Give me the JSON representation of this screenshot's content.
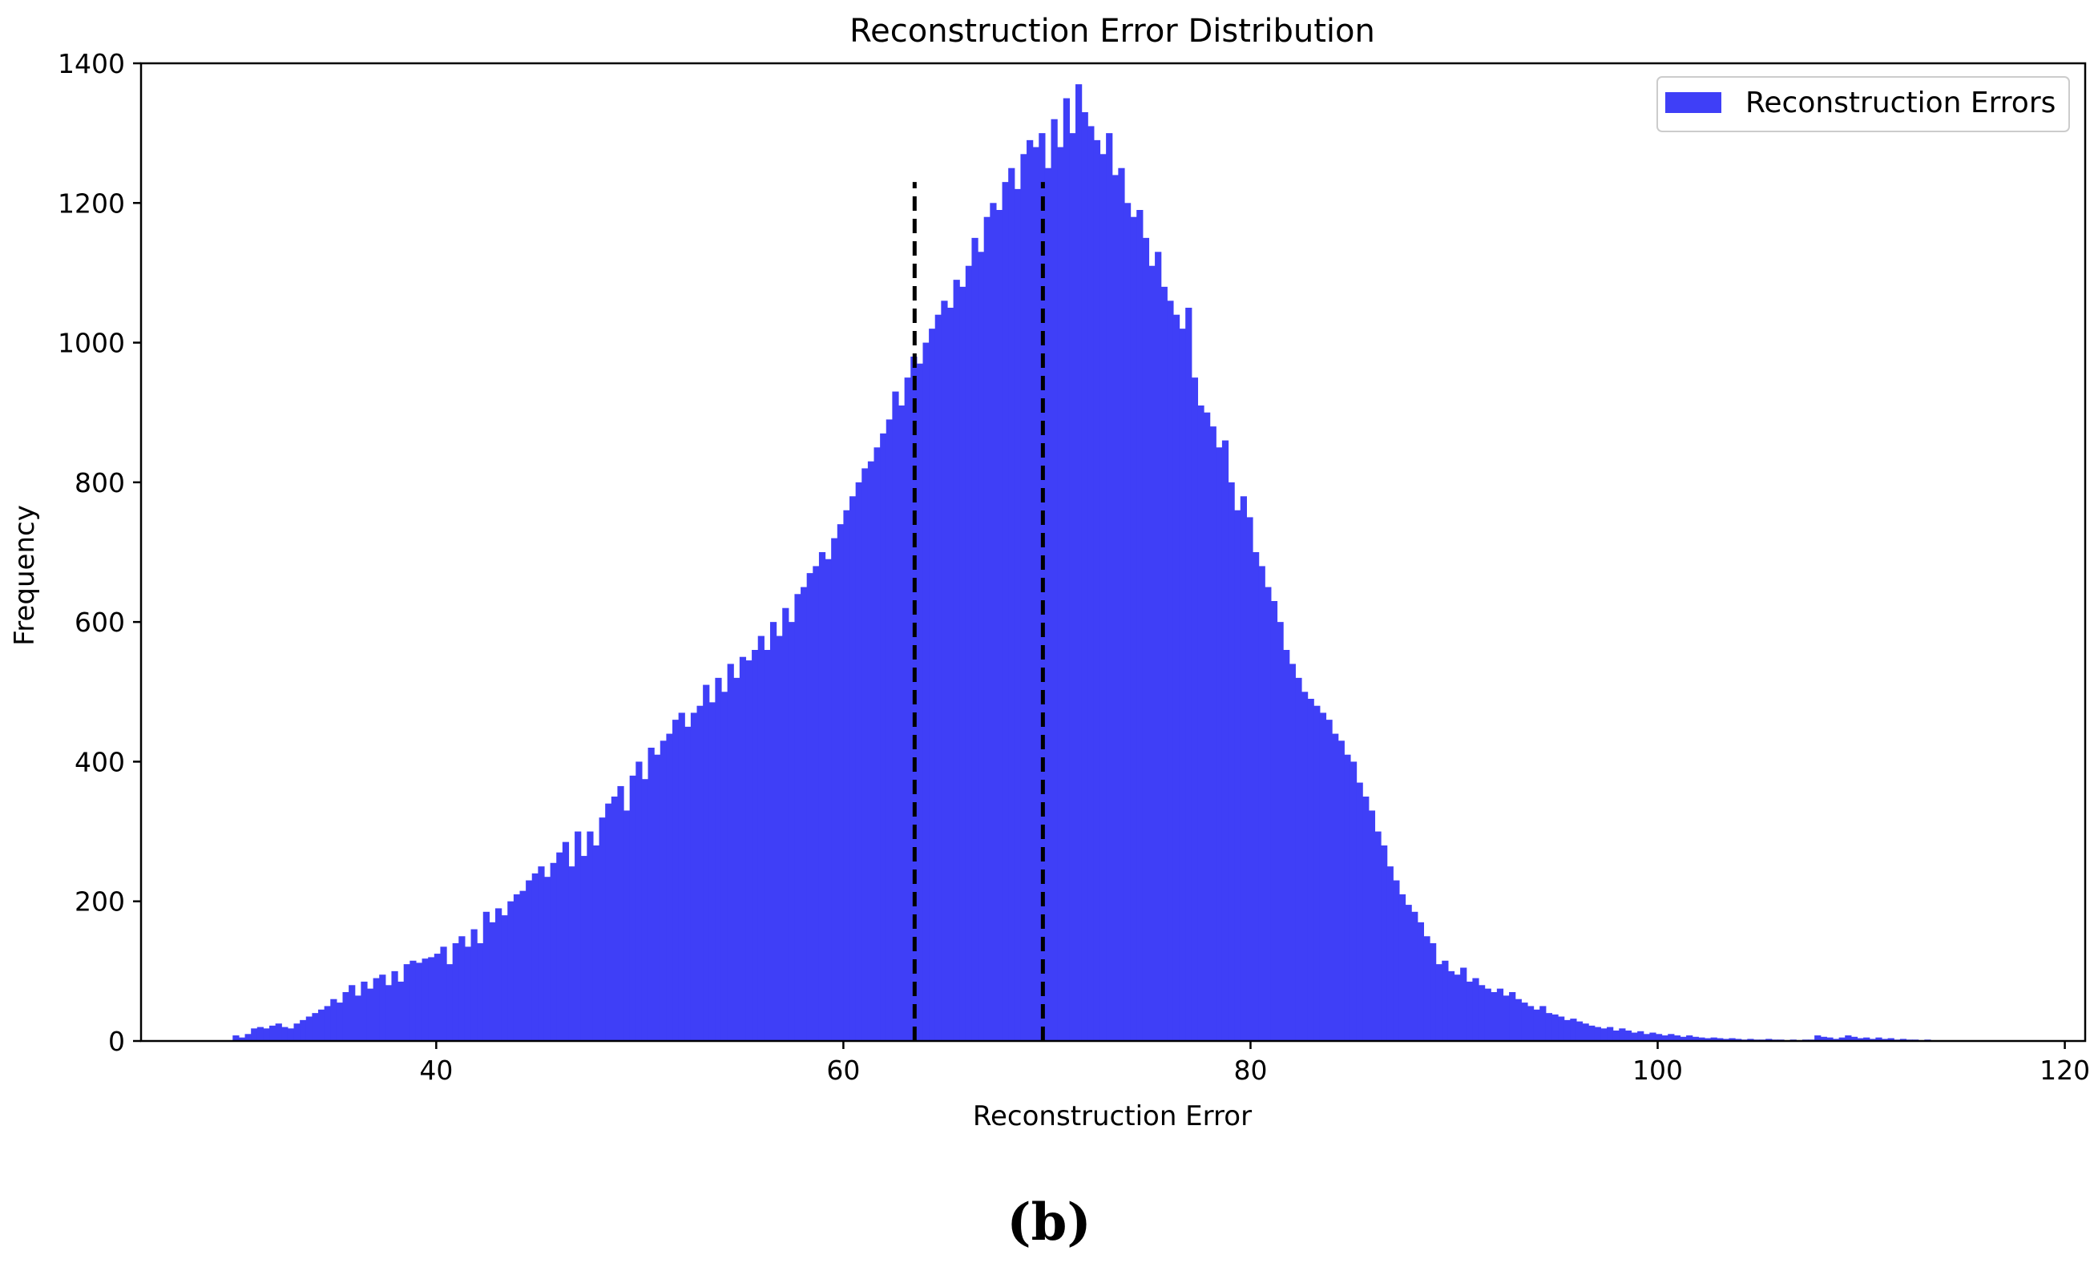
{
  "chart_data": {
    "type": "bar",
    "title": "Reconstruction Error Distribution",
    "xlabel": "Reconstruction Error",
    "ylabel": "Frequency",
    "xlim": [
      25.5,
      121
    ],
    "ylim": [
      0,
      1400
    ],
    "xticks": [
      40,
      60,
      80,
      100,
      120
    ],
    "yticks": [
      0,
      200,
      400,
      600,
      800,
      1000,
      1200,
      1400
    ],
    "grid": false,
    "legend": {
      "location": "top-right",
      "entries": [
        "Reconstruction Errors"
      ]
    },
    "series": [
      {
        "name": "Reconstruction Errors",
        "color": "#3f3ff7",
        "bin_start": 30,
        "bin_width": 0.3,
        "counts": [
          8,
          5,
          10,
          18,
          20,
          18,
          22,
          25,
          20,
          18,
          25,
          30,
          35,
          40,
          45,
          50,
          60,
          55,
          70,
          80,
          65,
          85,
          75,
          90,
          95,
          80,
          100,
          85,
          110,
          115,
          112,
          118,
          120,
          125,
          135,
          110,
          140,
          150,
          135,
          160,
          140,
          185,
          170,
          190,
          180,
          200,
          210,
          215,
          230,
          240,
          250,
          235,
          255,
          270,
          285,
          250,
          300,
          265,
          300,
          280,
          320,
          340,
          350,
          365,
          330,
          380,
          400,
          375,
          420,
          410,
          430,
          440,
          460,
          470,
          450,
          470,
          480,
          510,
          485,
          520,
          500,
          540,
          520,
          550,
          545,
          560,
          580,
          560,
          600,
          580,
          620,
          600,
          640,
          650,
          670,
          680,
          700,
          690,
          720,
          740,
          760,
          780,
          800,
          820,
          830,
          850,
          870,
          890,
          930,
          910,
          950,
          980,
          970,
          1000,
          1020,
          1040,
          1060,
          1050,
          1090,
          1080,
          1110,
          1150,
          1130,
          1180,
          1200,
          1190,
          1230,
          1250,
          1220,
          1270,
          1290,
          1280,
          1300,
          1250,
          1320,
          1280,
          1350,
          1300,
          1370,
          1330,
          1310,
          1290,
          1270,
          1300,
          1240,
          1250,
          1200,
          1180,
          1190,
          1150,
          1110,
          1130,
          1080,
          1060,
          1040,
          1020,
          1050,
          950,
          910,
          900,
          880,
          850,
          860,
          800,
          760,
          780,
          750,
          700,
          680,
          650,
          630,
          600,
          560,
          540,
          520,
          500,
          490,
          480,
          470,
          460,
          440,
          430,
          410,
          400,
          370,
          350,
          330,
          300,
          280,
          250,
          230,
          210,
          195,
          185,
          170,
          150,
          140,
          110,
          115,
          100,
          95,
          105,
          85,
          90,
          80,
          75,
          70,
          75,
          65,
          70,
          60,
          55,
          50,
          45,
          50,
          40,
          38,
          35,
          30,
          32,
          28,
          25,
          22,
          20,
          18,
          20,
          15,
          18,
          15,
          12,
          14,
          10,
          12,
          10,
          8,
          10,
          8,
          6,
          8,
          6,
          5,
          4,
          5,
          4,
          3,
          4,
          3,
          2,
          3,
          2,
          2,
          3,
          2,
          2,
          1,
          2,
          1,
          2,
          2,
          8,
          6,
          5,
          3,
          5,
          8,
          6,
          4,
          5,
          3,
          5,
          3,
          4,
          2,
          3,
          2,
          2,
          1,
          2,
          1,
          1,
          0,
          0,
          1,
          0,
          0,
          0,
          1,
          0,
          0,
          0,
          0,
          1,
          0,
          0,
          0,
          0,
          0,
          0,
          0,
          0,
          1,
          0,
          0,
          0,
          0,
          0,
          0,
          0,
          0,
          0,
          0,
          0,
          0,
          0,
          0,
          0,
          0,
          0,
          0,
          0,
          0,
          0,
          0,
          0,
          1,
          0,
          0,
          0,
          0,
          0,
          0,
          0,
          0,
          0,
          0,
          0,
          0,
          0,
          0,
          0,
          0,
          0,
          0,
          0,
          0,
          0,
          0,
          0,
          0,
          0,
          0,
          0,
          0,
          0,
          1,
          0,
          0,
          0,
          0,
          0,
          0,
          0,
          0,
          1,
          0,
          0,
          1,
          0,
          0,
          0,
          0,
          0,
          0,
          0,
          0,
          1,
          0,
          0,
          0,
          0,
          0,
          0,
          0,
          1,
          0,
          0,
          0,
          1,
          0,
          0,
          0,
          0,
          0,
          0,
          0,
          0,
          0,
          0,
          0,
          0,
          0,
          0,
          0,
          0,
          0,
          0,
          0,
          0,
          0,
          0,
          0,
          0,
          0,
          0
        ]
      }
    ],
    "vlines": [
      {
        "x": 63.5,
        "ymin": 0,
        "ymax": 1230,
        "style": "dashed",
        "color": "#000000"
      },
      {
        "x": 69.8,
        "ymin": 0,
        "ymax": 1230,
        "style": "dashed",
        "color": "#000000"
      }
    ]
  },
  "panel_label": "(b)"
}
